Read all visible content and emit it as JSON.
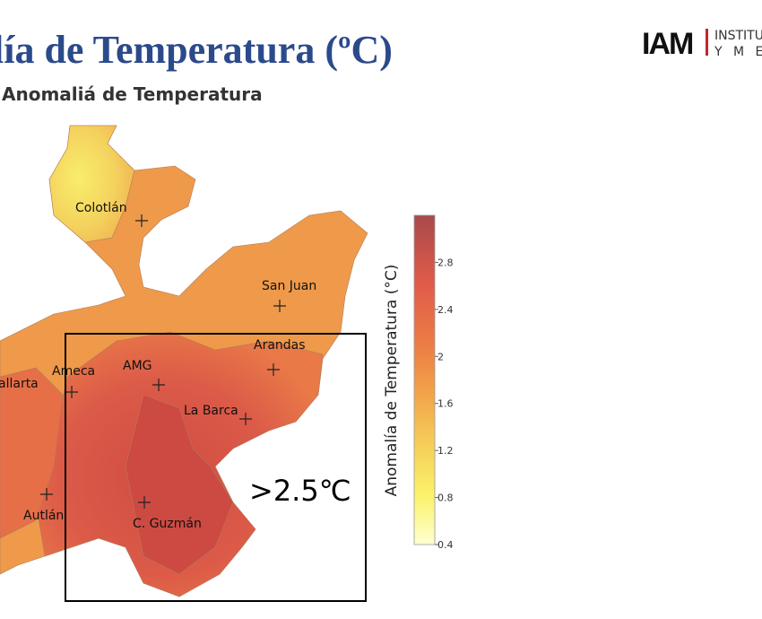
{
  "header": {
    "title": "lía de Temperatura (ºC)",
    "logo": "IAM",
    "logo_line1": "INSTITU",
    "logo_line2": "Y  M E"
  },
  "map": {
    "title": "Anomaliá de Temperatura",
    "cities": [
      "Colotlán",
      "San Juan",
      "Arandas",
      "Ameca",
      "AMG",
      "La Barca",
      "allarta",
      "Autlán",
      "C. Guzmán"
    ],
    "box_label": ">2.5℃",
    "colorbar": {
      "label": "Anomalía de Temperatura (°C)",
      "range": [
        0.4,
        3.2
      ],
      "ticks": [
        2.8,
        2.4,
        2,
        1.6,
        1.2,
        0.8,
        0.4
      ]
    }
  }
}
